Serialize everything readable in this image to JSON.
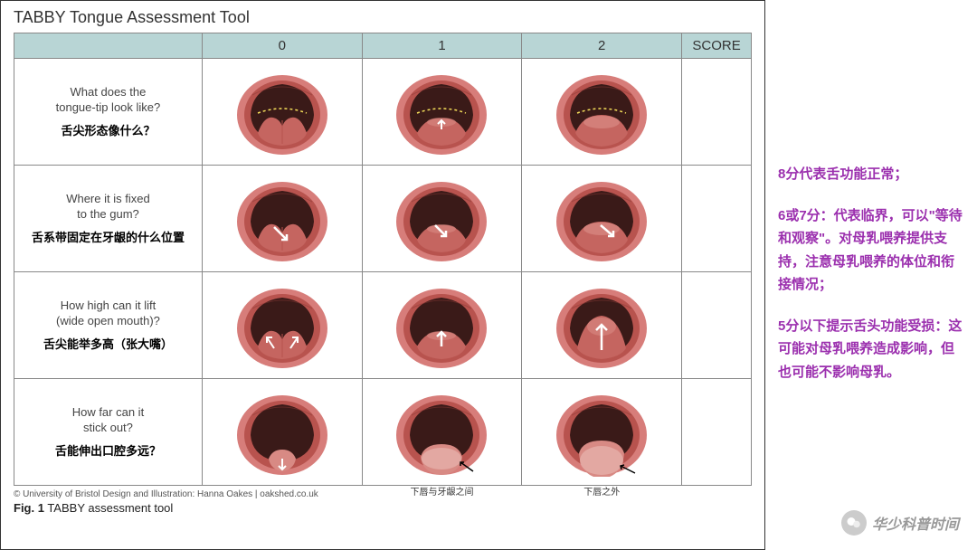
{
  "title": "TABBY Tongue Assessment Tool",
  "columns": [
    "",
    "0",
    "1",
    "2",
    "SCORE"
  ],
  "rows": [
    {
      "en": "What does the\ntongue-tip look like?",
      "cn": "舌尖形态像什么？",
      "cells": [
        {
          "tongue": "heart",
          "dotted": true,
          "arrow": null,
          "caption": null
        },
        {
          "tongue": "slight",
          "dotted": true,
          "arrow": "up-small",
          "caption": null
        },
        {
          "tongue": "round",
          "dotted": true,
          "arrow": null,
          "caption": null
        }
      ]
    },
    {
      "en": "Where it is fixed\nto the gum?",
      "cn": "舌系带固定在牙龈的什么位置",
      "cells": [
        {
          "tongue": "heart",
          "dotted": false,
          "arrow": "diag-down",
          "caption": null
        },
        {
          "tongue": "slight",
          "dotted": false,
          "arrow": "diag-down-mid",
          "caption": null
        },
        {
          "tongue": "round",
          "dotted": false,
          "arrow": "diag-down-low",
          "caption": null
        }
      ]
    },
    {
      "en": "How high can it lift\n(wide open mouth)?",
      "cn": "舌尖能举多高（张大嘴）",
      "cells": [
        {
          "tongue": "heart",
          "dotted": false,
          "arrow": "two-up-diag",
          "caption": null
        },
        {
          "tongue": "slight",
          "dotted": false,
          "arrow": "up-mid",
          "caption": null
        },
        {
          "tongue": "lifted",
          "dotted": false,
          "arrow": "up-high",
          "caption": null
        }
      ]
    },
    {
      "en": "How far can it\nstick out?",
      "cn": "舌能伸出口腔多远？",
      "cells": [
        {
          "tongue": "stick-min",
          "dotted": false,
          "arrow": "down-small",
          "caption": null
        },
        {
          "tongue": "stick-mid",
          "dotted": false,
          "arrow": "diag-out",
          "caption": "下唇与牙龈之间"
        },
        {
          "tongue": "stick-far",
          "dotted": false,
          "arrow": "diag-out-far",
          "caption": "下唇之外"
        }
      ]
    }
  ],
  "notes": [
    "8分代表舌功能正常；",
    "6或7分：代表临界，可以\"等待和观察\"。对母乳喂养提供支持，注意母乳喂养的体位和衔接情况；",
    "5分以下提示舌头功能受损：这可能对母乳喂养造成影响，但也可能不影响母乳。"
  ],
  "credits": "© University of Bristol    Design and Illustration: Hanna Oakes | oakshed.co.uk",
  "figlabel_prefix": "Fig. 1",
  "figlabel_text": " TABBY assessment tool",
  "watermark": "华少科普时间",
  "colors": {
    "header_bg": "#b8d5d5",
    "note_color": "#9b2fae",
    "lip_outer": "#d77d7a",
    "lip_inner": "#b8534e",
    "cavity": "#3a1a18",
    "tongue": "#c56560",
    "tongue_light": "#d88a84",
    "dotted": "#f5e05a",
    "arrow": "#ffffff",
    "caption_arrow": "#000000"
  }
}
